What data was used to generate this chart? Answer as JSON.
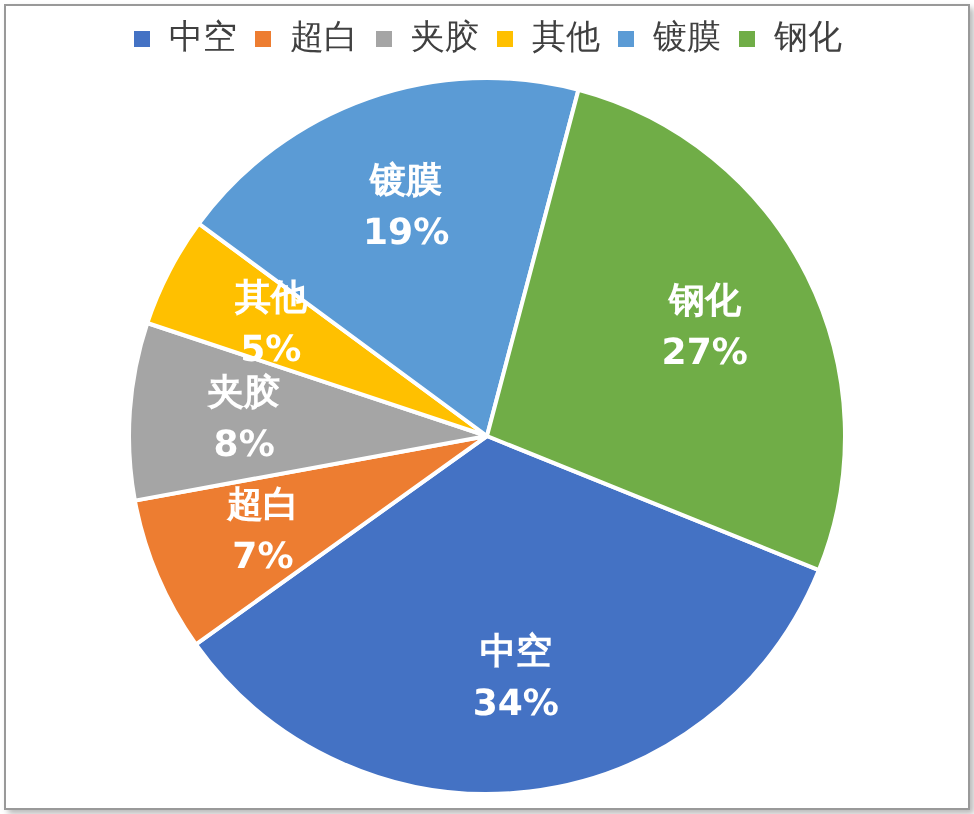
{
  "chart_data": {
    "type": "pie",
    "categories": [
      "中空",
      "超白",
      "夹胶",
      "其他",
      "镀膜",
      "钢化"
    ],
    "values": [
      34,
      7,
      8,
      5,
      19,
      27
    ],
    "colors": [
      "#4472c4",
      "#ed7d31",
      "#a5a5a5",
      "#ffc000",
      "#5b9bd5",
      "#70ad47"
    ],
    "value_labels": [
      "34%",
      "7%",
      "8%",
      "5%",
      "19%",
      "27%"
    ],
    "legend": "top"
  }
}
